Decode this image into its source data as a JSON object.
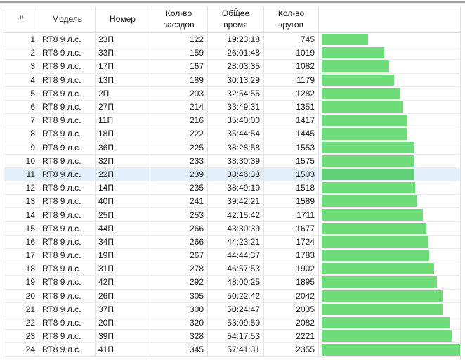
{
  "table": {
    "columns": [
      {
        "label": "#"
      },
      {
        "label": "Модель"
      },
      {
        "label": "Номер"
      },
      {
        "label": "Кол-во заездов"
      },
      {
        "label": "Общее время",
        "sort": "ascending"
      },
      {
        "label": "Кол-во кругов"
      },
      {
        "label": ""
      }
    ],
    "selected_row": 11,
    "colors": {
      "bar": "#6edc78",
      "bar_selected": "#5fd077",
      "selection_bg": "#e3f0fb"
    },
    "rows": [
      {
        "num": 1,
        "model": "RT8 9 л.с.",
        "number": "23П",
        "rides": 122,
        "time": "19:23:18",
        "laps": 745
      },
      {
        "num": 2,
        "model": "RT8 9 л.с.",
        "number": "33П",
        "rides": 159,
        "time": "26:01:48",
        "laps": 1019
      },
      {
        "num": 3,
        "model": "RT8 9 л.с.",
        "number": "17П",
        "rides": 167,
        "time": "28:03:35",
        "laps": 1082
      },
      {
        "num": 4,
        "model": "RT8 9 л.с.",
        "number": "13П",
        "rides": 189,
        "time": "30:13:29",
        "laps": 1179
      },
      {
        "num": 5,
        "model": "RT8 9 л.с.",
        "number": "2П",
        "rides": 203,
        "time": "32:54:55",
        "laps": 1282
      },
      {
        "num": 6,
        "model": "RT8 9 л.с.",
        "number": "27П",
        "rides": 214,
        "time": "33:49:31",
        "laps": 1351
      },
      {
        "num": 7,
        "model": "RT8 9 л.с.",
        "number": "11П",
        "rides": 216,
        "time": "35:40:00",
        "laps": 1417
      },
      {
        "num": 8,
        "model": "RT8 9 л.с.",
        "number": "18П",
        "rides": 222,
        "time": "35:44:54",
        "laps": 1445
      },
      {
        "num": 9,
        "model": "RT8 9 л.с.",
        "number": "36П",
        "rides": 225,
        "time": "38:28:58",
        "laps": 1553
      },
      {
        "num": 10,
        "model": "RT8 9 л.с.",
        "number": "32П",
        "rides": 233,
        "time": "38:30:39",
        "laps": 1575
      },
      {
        "num": 11,
        "model": "RT8 9 л.с.",
        "number": "22П",
        "rides": 239,
        "time": "38:46:38",
        "laps": 1503
      },
      {
        "num": 12,
        "model": "RT8 9 л.с.",
        "number": "14П",
        "rides": 235,
        "time": "38:49:10",
        "laps": 1518
      },
      {
        "num": 13,
        "model": "RT8 9 л.с.",
        "number": "40П",
        "rides": 241,
        "time": "39:42:21",
        "laps": 1589
      },
      {
        "num": 14,
        "model": "RT8 9 л.с.",
        "number": "25П",
        "rides": 253,
        "time": "42:15:42",
        "laps": 1711
      },
      {
        "num": 15,
        "model": "RT8 9 л.с.",
        "number": "44П",
        "rides": 266,
        "time": "43:30:39",
        "laps": 1677
      },
      {
        "num": 16,
        "model": "RT8 9 л.с.",
        "number": "34П",
        "rides": 266,
        "time": "44:23:21",
        "laps": 1724
      },
      {
        "num": 17,
        "model": "RT8 9 л.с.",
        "number": "19П",
        "rides": 267,
        "time": "44:44:37",
        "laps": 1783
      },
      {
        "num": 18,
        "model": "RT8 9 л.с.",
        "number": "31П",
        "rides": 278,
        "time": "46:57:53",
        "laps": 1902
      },
      {
        "num": 19,
        "model": "RT8 9 л.с.",
        "number": "42П",
        "rides": 292,
        "time": "48:00:25",
        "laps": 1895
      },
      {
        "num": 20,
        "model": "RT8 9 л.с.",
        "number": "26П",
        "rides": 305,
        "time": "50:22:42",
        "laps": 2042
      },
      {
        "num": 21,
        "model": "RT8 9 л.с.",
        "number": "37П",
        "rides": 300,
        "time": "50:24:47",
        "laps": 2035
      },
      {
        "num": 22,
        "model": "RT8 9 л.с.",
        "number": "20П",
        "rides": 320,
        "time": "53:09:50",
        "laps": 2082
      },
      {
        "num": 23,
        "model": "RT8 9 л.с.",
        "number": "39П",
        "rides": 328,
        "time": "54:17:53",
        "laps": 2221
      },
      {
        "num": 24,
        "model": "RT8 9 л.с.",
        "number": "41П",
        "rides": 345,
        "time": "57:41:31",
        "laps": 2355
      }
    ]
  }
}
